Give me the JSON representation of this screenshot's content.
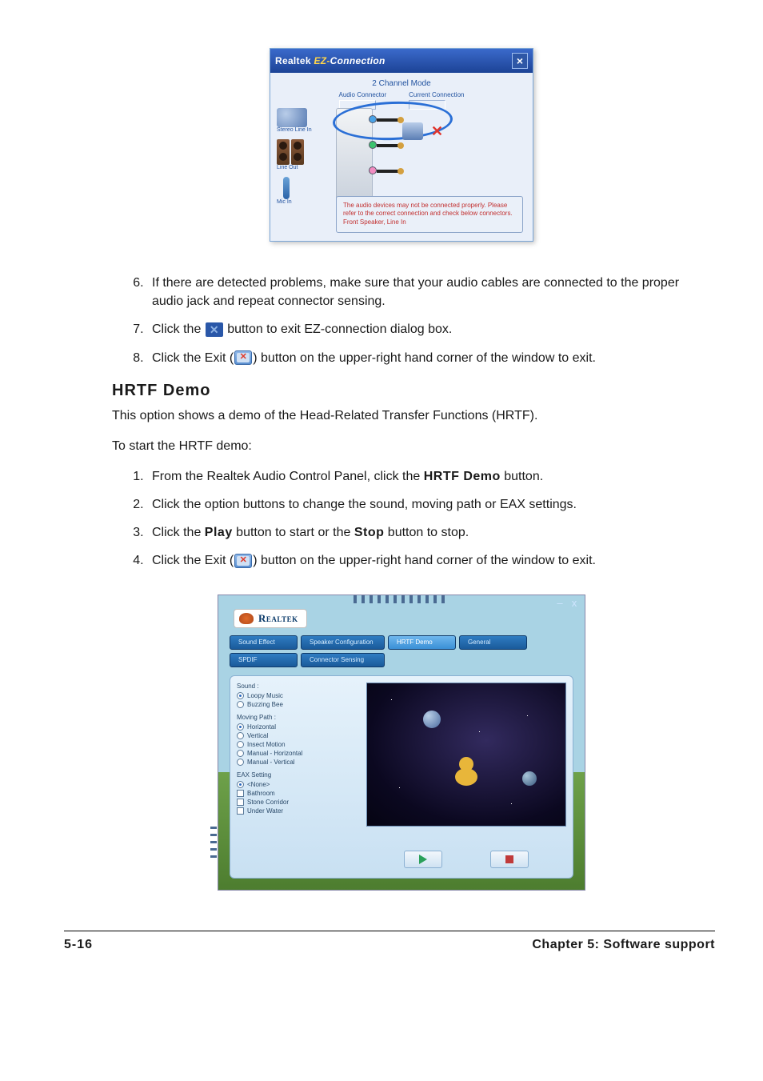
{
  "ez": {
    "title_brand": "Realtek",
    "title_ez": "EZ-",
    "title_conn": "Connection",
    "close": "×",
    "mode": "2 Channel Mode",
    "col1": "Audio Connector",
    "col2": "Current Connection",
    "dev_stereo": "Stereo Line In",
    "dev_lineout": "Line Out",
    "dev_mic": "Mic In",
    "warn": "The audio devices may not be connected properly. Please refer to the correct connection and check below connectors. Front Speaker, Line In",
    "colors": {
      "titlebar_top": "#3b6acb",
      "titlebar_bot": "#1c4396",
      "body_bg": "#e9eff9",
      "jack_blue": "#4aa3e8",
      "jack_green": "#3cc36e",
      "jack_pink": "#f28cc2",
      "warn_text": "#c23030",
      "ring": "#2a6fd6"
    }
  },
  "steps_a": {
    "6": "If there are detected problems, make sure that your audio cables are connected to the proper audio jack and repeat connector sensing.",
    "7a": "Click the ",
    "7b": " button to exit EZ-connection dialog box.",
    "8a": "Click the Exit (",
    "8b": ") button on the upper-right hand corner of the window to exit."
  },
  "hrtf": {
    "heading": "HRTF Demo",
    "intro": "This option shows a demo of the Head-Related Transfer Functions (HRTF).",
    "start": "To start the HRTF demo:",
    "1a": "From the Realtek Audio Control Panel, click the ",
    "1bold": "HRTF Demo",
    "1b": " button.",
    "2": "Click the option buttons to change the sound, moving path or EAX settings.",
    "3a": "Click the ",
    "3play": "Play",
    "3b": " button to start or the ",
    "3stop": "Stop",
    "3c": " button to stop.",
    "4a": "Click the Exit (",
    "4b": ") button on the upper-right hand corner of the window to exit."
  },
  "rt": {
    "logo": "Realtek",
    "win_min": "–",
    "win_close": "x",
    "tabs": {
      "sound": "Sound Effect",
      "speaker": "Speaker Configuration",
      "hrtf": "HRTF Demo",
      "general": "General",
      "spdif": "SPDIF",
      "conn": "Connector Sensing"
    },
    "groups": {
      "sound": "Sound :",
      "sound_opts": [
        "Loopy Music",
        "Buzzing Bee"
      ],
      "path": "Moving Path :",
      "path_opts": [
        "Horizontal",
        "Vertical",
        "Insect Motion",
        "Manual - Horizontal",
        "Manual - Vertical"
      ],
      "eax": "EAX Setting",
      "eax_opts": [
        "<None>",
        "Bathroom",
        "Stone Corridor",
        "Under Water"
      ]
    },
    "play_tip": "Play",
    "stop_tip": "Stop",
    "colors": {
      "sky": "#a9d3e4",
      "grass_top": "#6ea14a",
      "grass_bot": "#4d7d2f",
      "tab_bg_top": "#2f7cc2",
      "tab_bg_bot": "#1a5a9a",
      "tab_active_top": "#6fb7ee",
      "tab_active_bot": "#3a8fd5",
      "panel_top": "#e6f2fb",
      "panel_bot": "#c8e0f2",
      "preview_space": "#0b0820",
      "duck": "#e8b63a",
      "play": "#2aa05a",
      "stop": "#c03a3a"
    }
  },
  "footer": {
    "page": "5-16",
    "chapter": "Chapter 5: Software support"
  }
}
